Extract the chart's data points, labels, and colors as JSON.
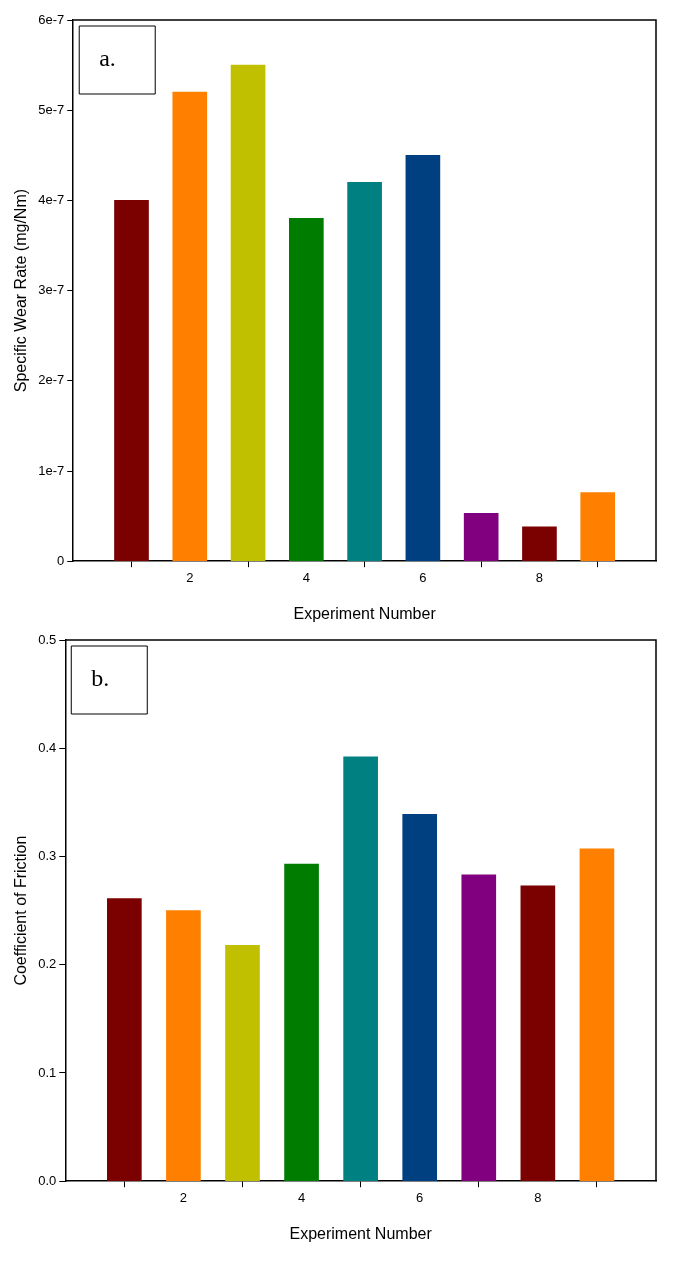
{
  "chart_data": [
    {
      "type": "bar",
      "xlabel": "Experiment Number",
      "ylabel": "Specific Wear Rate (mg/Nm)",
      "annotations": [
        "a."
      ],
      "x": [
        1,
        2,
        3,
        4,
        5,
        6,
        7,
        8,
        9
      ],
      "values": [
        4e-07,
        5.2e-07,
        5.5e-07,
        3.8e-07,
        4.2e-07,
        4.5e-07,
        5.3e-08,
        3.8e-08,
        7.6e-08
      ],
      "colors": [
        "#7b0000",
        "#ff8000",
        "#c0c000",
        "#007c00",
        "#008080",
        "#003f80",
        "#800080",
        "#7b0000",
        "#ff8000"
      ],
      "xlim": [
        0,
        10
      ],
      "xticks": [
        2,
        4,
        6,
        8
      ],
      "ylim": [
        0,
        6e-07
      ],
      "yticks": [
        0,
        {
          "value": 1e-07,
          "label": "1e-7"
        },
        {
          "value": 2e-07,
          "label": "2e-7"
        },
        {
          "value": 3e-07,
          "label": "3e-7"
        },
        {
          "value": 4e-07,
          "label": "4e-7"
        },
        {
          "value": 5e-07,
          "label": "5e-7"
        },
        {
          "value": 6e-07,
          "label": "6e-7"
        }
      ]
    },
    {
      "type": "bar",
      "xlabel": "Experiment Number",
      "ylabel": "Coefficient of Friction",
      "annotations": [
        "b."
      ],
      "x": [
        1,
        2,
        3,
        4,
        5,
        6,
        7,
        8,
        9
      ],
      "values": [
        0.261,
        0.25,
        0.218,
        0.293,
        0.392,
        0.339,
        0.283,
        0.273,
        0.307
      ],
      "colors": [
        "#7b0000",
        "#ff8000",
        "#c0c000",
        "#007c00",
        "#008080",
        "#003f80",
        "#800080",
        "#7b0000",
        "#ff8000"
      ],
      "xlim": [
        0,
        10
      ],
      "xticks": [
        2,
        4,
        6,
        8
      ],
      "ylim": [
        0,
        0.5
      ],
      "yticks": [
        {
          "value": 0,
          "label": "0.0"
        },
        0.1,
        0.2,
        0.3,
        0.4,
        0.5
      ]
    }
  ]
}
